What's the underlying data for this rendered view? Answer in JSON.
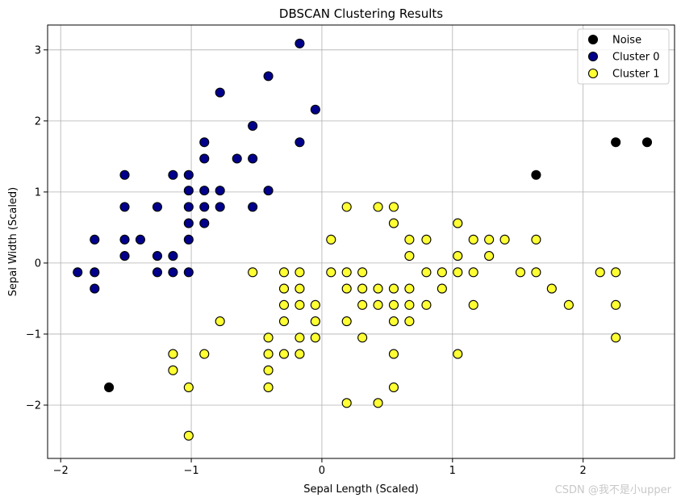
{
  "chart_data": {
    "type": "scatter",
    "title": "DBSCAN Clustering Results",
    "xlabel": "Sepal Length (Scaled)",
    "ylabel": "Sepal Width (Scaled)",
    "xlim": [
      -2.1,
      2.7
    ],
    "ylim": [
      -2.75,
      3.35
    ],
    "xticks": [
      -2,
      -1,
      0,
      1,
      2
    ],
    "yticks": [
      -2,
      -1,
      0,
      1,
      2,
      3
    ],
    "grid": true,
    "legend_position": "top-right",
    "series": [
      {
        "name": "Noise",
        "color": "#000000",
        "points": [
          [
            -1.63,
            -1.75
          ],
          [
            1.64,
            1.24
          ],
          [
            2.25,
            1.7
          ],
          [
            2.49,
            1.7
          ]
        ]
      },
      {
        "name": "Cluster 0",
        "color": "#00008b",
        "points": [
          [
            -1.87,
            -0.13
          ],
          [
            -1.74,
            0.33
          ],
          [
            -1.74,
            -0.13
          ],
          [
            -1.74,
            -0.36
          ],
          [
            -1.51,
            1.24
          ],
          [
            -1.51,
            0.79
          ],
          [
            -1.51,
            0.33
          ],
          [
            -1.51,
            0.1
          ],
          [
            -1.39,
            0.33
          ],
          [
            -1.26,
            0.79
          ],
          [
            -1.26,
            0.1
          ],
          [
            -1.26,
            -0.13
          ],
          [
            -1.14,
            1.24
          ],
          [
            -1.14,
            0.1
          ],
          [
            -1.14,
            -0.13
          ],
          [
            -1.02,
            1.24
          ],
          [
            -1.02,
            1.02
          ],
          [
            -1.02,
            0.79
          ],
          [
            -1.02,
            0.56
          ],
          [
            -1.02,
            0.33
          ],
          [
            -1.02,
            -0.13
          ],
          [
            -0.9,
            1.7
          ],
          [
            -0.9,
            1.47
          ],
          [
            -0.9,
            1.02
          ],
          [
            -0.9,
            0.79
          ],
          [
            -0.9,
            0.56
          ],
          [
            -0.78,
            2.4
          ],
          [
            -0.78,
            1.02
          ],
          [
            -0.78,
            0.79
          ],
          [
            -0.65,
            1.47
          ],
          [
            -0.53,
            1.93
          ],
          [
            -0.53,
            1.47
          ],
          [
            -0.53,
            0.79
          ],
          [
            -0.41,
            2.63
          ],
          [
            -0.41,
            1.02
          ],
          [
            -0.17,
            3.09
          ],
          [
            -0.17,
            1.7
          ],
          [
            -0.05,
            2.16
          ]
        ]
      },
      {
        "name": "Cluster 1",
        "color": "#ffff33",
        "points": [
          [
            -1.14,
            -1.28
          ],
          [
            -1.14,
            -1.51
          ],
          [
            -1.02,
            -1.75
          ],
          [
            -1.02,
            -2.43
          ],
          [
            -0.9,
            -1.28
          ],
          [
            -0.78,
            -0.82
          ],
          [
            -0.53,
            -0.13
          ],
          [
            -0.41,
            -1.05
          ],
          [
            -0.41,
            -1.28
          ],
          [
            -0.41,
            -1.51
          ],
          [
            -0.41,
            -1.75
          ],
          [
            -0.29,
            -0.13
          ],
          [
            -0.29,
            -0.36
          ],
          [
            -0.29,
            -0.59
          ],
          [
            -0.29,
            -0.82
          ],
          [
            -0.29,
            -1.28
          ],
          [
            -0.17,
            -0.13
          ],
          [
            -0.17,
            -0.36
          ],
          [
            -0.17,
            -0.59
          ],
          [
            -0.17,
            -1.05
          ],
          [
            -0.17,
            -1.28
          ],
          [
            -0.05,
            -0.59
          ],
          [
            -0.05,
            -0.82
          ],
          [
            -0.05,
            -1.05
          ],
          [
            0.07,
            0.33
          ],
          [
            0.07,
            -0.13
          ],
          [
            0.19,
            0.79
          ],
          [
            0.19,
            -0.13
          ],
          [
            0.19,
            -0.36
          ],
          [
            0.19,
            -0.82
          ],
          [
            0.19,
            -1.97
          ],
          [
            0.31,
            -0.13
          ],
          [
            0.31,
            -0.36
          ],
          [
            0.31,
            -0.59
          ],
          [
            0.31,
            -1.05
          ],
          [
            0.43,
            0.79
          ],
          [
            0.43,
            -0.36
          ],
          [
            0.43,
            -0.59
          ],
          [
            0.43,
            -1.97
          ],
          [
            0.55,
            0.79
          ],
          [
            0.55,
            0.56
          ],
          [
            0.55,
            -0.36
          ],
          [
            0.55,
            -0.59
          ],
          [
            0.55,
            -0.82
          ],
          [
            0.55,
            -1.28
          ],
          [
            0.55,
            -1.75
          ],
          [
            0.67,
            0.33
          ],
          [
            0.67,
            0.1
          ],
          [
            0.67,
            -0.36
          ],
          [
            0.67,
            -0.59
          ],
          [
            0.67,
            -0.82
          ],
          [
            0.8,
            0.33
          ],
          [
            0.8,
            -0.13
          ],
          [
            0.8,
            -0.59
          ],
          [
            0.92,
            -0.13
          ],
          [
            0.92,
            -0.36
          ],
          [
            1.04,
            0.56
          ],
          [
            1.04,
            0.1
          ],
          [
            1.04,
            -0.13
          ],
          [
            1.04,
            -1.28
          ],
          [
            1.16,
            0.33
          ],
          [
            1.16,
            -0.13
          ],
          [
            1.16,
            -0.59
          ],
          [
            1.28,
            0.33
          ],
          [
            1.28,
            0.1
          ],
          [
            1.4,
            0.33
          ],
          [
            1.52,
            -0.13
          ],
          [
            1.64,
            0.33
          ],
          [
            1.64,
            -0.13
          ],
          [
            1.76,
            -0.36
          ],
          [
            1.89,
            -0.59
          ],
          [
            2.13,
            -0.13
          ],
          [
            2.25,
            -0.13
          ],
          [
            2.25,
            -0.59
          ],
          [
            2.25,
            -1.05
          ]
        ]
      }
    ]
  },
  "watermark": "CSDN @我不是小upper"
}
